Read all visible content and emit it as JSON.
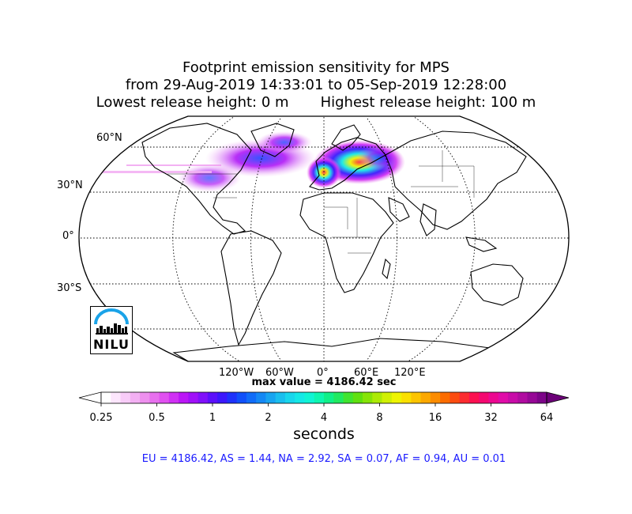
{
  "title": {
    "line1": "Footprint emission sensitivity for MPS",
    "line2": "from 29-Aug-2019 14:33:01 to 05-Sep-2019 12:28:00",
    "line3": "Lowest release height: 0 m       Highest release height: 100 m"
  },
  "lat_labels": [
    "60°N",
    "30°N",
    "0°",
    "30°S"
  ],
  "lon_labels": [
    "120°W",
    "60°W",
    "0°",
    "60°E",
    "120°E"
  ],
  "max_value": "max value = 4186.42 sec",
  "colorbar": {
    "ticks": [
      "0.25",
      "0.5",
      "1",
      "2",
      "4",
      "8",
      "16",
      "32",
      "64"
    ],
    "label": "seconds",
    "colors": [
      "#ffffff",
      "#fde6fd",
      "#f8ccf8",
      "#f3b0f3",
      "#ee90ee",
      "#e770ee",
      "#e050f0",
      "#d030f4",
      "#bb16f6",
      "#a010f8",
      "#8010fa",
      "#5c10fb",
      "#3c18fc",
      "#1e32fb",
      "#1050fa",
      "#106cf8",
      "#1488f4",
      "#18a4f0",
      "#1abeee",
      "#18d6ec",
      "#14e8e6",
      "#10f4d4",
      "#0ef6b0",
      "#10f088",
      "#20ea60",
      "#40e430",
      "#60e010",
      "#86e408",
      "#acea06",
      "#d0f004",
      "#eef402",
      "#fae000",
      "#fcc400",
      "#fca800",
      "#fc8c00",
      "#fc6c00",
      "#fc4c10",
      "#fc2c30",
      "#fc1050",
      "#f40870",
      "#ec0890",
      "#e00ca8",
      "#c80ca8",
      "#b00ca0",
      "#960896",
      "#7c0488"
    ]
  },
  "stats": "EU = 4186.42,  AS = 1.44,  NA = 2.92,  SA = 0.07,  AF = 0.94,  AU = 0.01",
  "logo": {
    "text": "NILU"
  }
}
